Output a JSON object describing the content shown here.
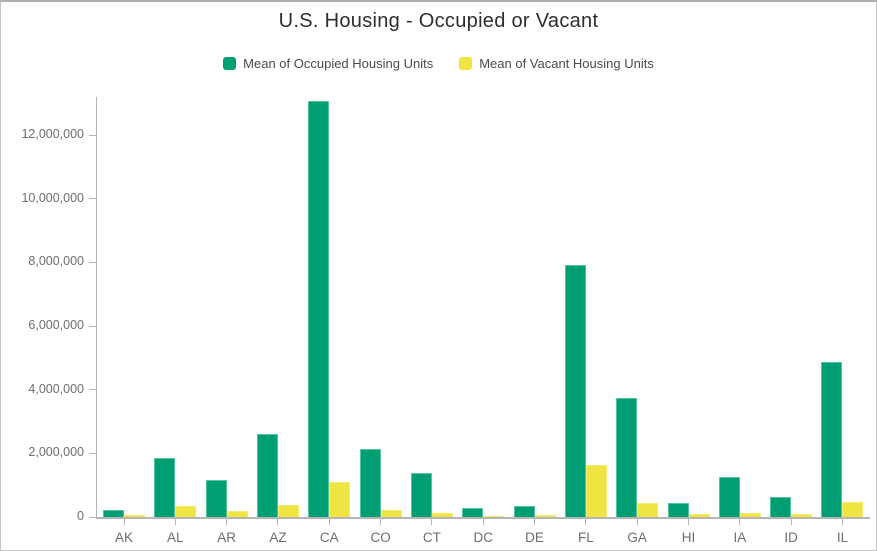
{
  "card": {
    "title": "U.S. Housing - Occupied or Vacant"
  },
  "colors": {
    "occupied": "#009e73",
    "vacant": "#f0e442",
    "axis": "#b5b5b5",
    "tick_text": "#6e6e6e",
    "title_text": "#2e2e2e",
    "legend_text": "#4a4a4a"
  },
  "legend": {
    "items": [
      {
        "id": "occupied",
        "label": "Mean of Occupied Housing Units",
        "color": "#009e73"
      },
      {
        "id": "vacant",
        "label": "Mean of Vacant Housing Units",
        "color": "#f0e442"
      }
    ]
  },
  "chart_data": {
    "type": "bar",
    "title": "U.S. Housing - Occupied or Vacant",
    "xlabel": "",
    "ylabel": "",
    "categories": [
      "AK",
      "AL",
      "AR",
      "AZ",
      "CA",
      "CO",
      "CT",
      "DC",
      "DE",
      "FL",
      "GA",
      "HI",
      "IA",
      "ID",
      "IL"
    ],
    "series": [
      {
        "name": "Mean of Occupied Housing Units",
        "color": "#009e73",
        "values": [
          230000,
          1850000,
          1150000,
          2610000,
          13080000,
          2130000,
          1370000,
          280000,
          340000,
          7920000,
          3750000,
          440000,
          1250000,
          620000,
          4860000
        ]
      },
      {
        "name": "Mean of Vacant Housing Units",
        "color": "#f0e442",
        "values": [
          55000,
          350000,
          180000,
          390000,
          1090000,
          220000,
          120000,
          40000,
          70000,
          1620000,
          450000,
          85000,
          140000,
          85000,
          470000
        ]
      }
    ],
    "ylim": [
      0,
      13200000
    ],
    "yticks": [
      0,
      2000000,
      4000000,
      6000000,
      8000000,
      10000000,
      12000000
    ],
    "ytick_labels": [
      "0",
      "2,000,000",
      "4,000,000",
      "6,000,000",
      "8,000,000",
      "10,000,000",
      "12,000,000"
    ],
    "grid": false,
    "legend_position": "top"
  }
}
